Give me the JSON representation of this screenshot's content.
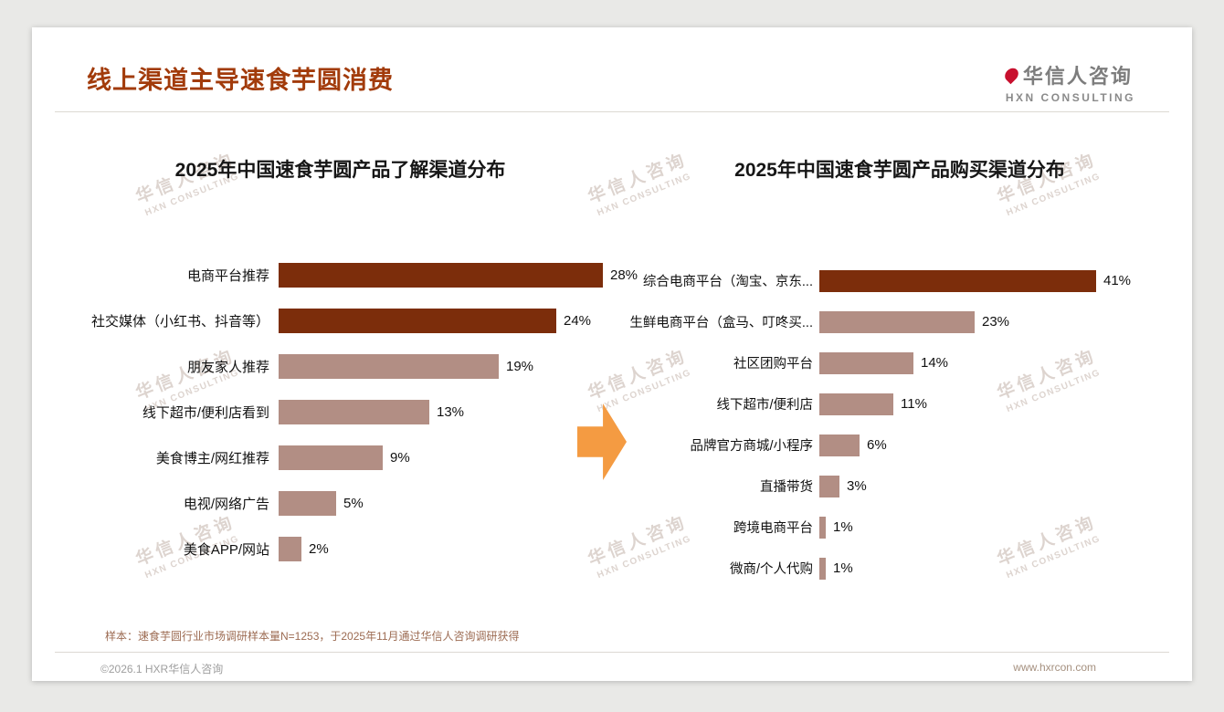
{
  "page": {
    "title": "线上渠道主导速食芋圆消费",
    "logo": {
      "name": "华信人咨询",
      "sub": "HXN CONSULTING"
    },
    "watermark": {
      "line1": "华信人咨询",
      "line2": "HXN CONSULTING"
    },
    "footnote": "样本：速食芋圆行业市场调研样本量N=1253，于2025年11月通过华信人咨询调研获得",
    "footer": {
      "left": "©2026.1 HXR华信人咨询",
      "right": "www.hxrcon.com"
    }
  },
  "colors": {
    "title": "#A23B0B",
    "bar_dark": "#7C2D0B",
    "bar_light": "#B28E84",
    "arrow": "#F49B42",
    "footnote": "#9C6B52",
    "footer_left": "#9E9E9E",
    "footer_right": "#A5907F",
    "watermark": "#BCAAA0"
  },
  "chart_data": [
    {
      "type": "bar",
      "orientation": "horizontal",
      "title": "2025年中国速食芋圆产品了解渠道分布",
      "unit": "%",
      "categories": [
        "电商平台推荐",
        "社交媒体（小红书、抖音等）",
        "朋友家人推荐",
        "线下超市/便利店看到",
        "美食博主/网红推荐",
        "电视/网络广告",
        "美食APP/网站"
      ],
      "values": [
        28,
        24,
        19,
        13,
        9,
        5,
        2
      ],
      "highlight_count": 2,
      "xlim": [
        0,
        28
      ],
      "value_labels": true,
      "grid": false,
      "legend": false
    },
    {
      "type": "bar",
      "orientation": "horizontal",
      "title": "2025年中国速食芋圆产品购买渠道分布",
      "unit": "%",
      "categories": [
        "综合电商平台（淘宝、京东...",
        "生鲜电商平台（盒马、叮咚买...",
        "社区团购平台",
        "线下超市/便利店",
        "品牌官方商城/小程序",
        "直播带货",
        "跨境电商平台",
        "微商/个人代购"
      ],
      "values": [
        41,
        23,
        14,
        11,
        6,
        3,
        1,
        1
      ],
      "highlight_count": 1,
      "xlim": [
        0,
        41
      ],
      "value_labels": true,
      "grid": false,
      "legend": false
    }
  ]
}
